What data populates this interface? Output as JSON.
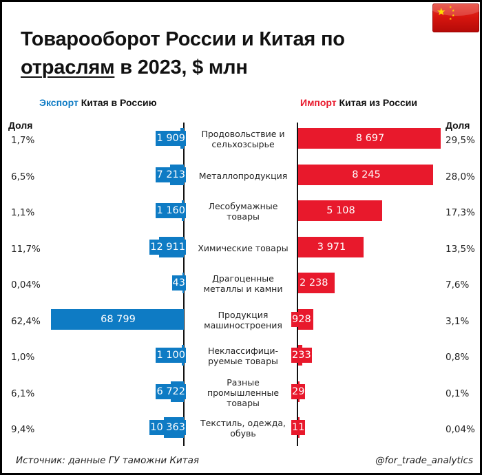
{
  "header": {
    "title_line1": "Товарооборот России и Китая по",
    "title_line2_underlined": "отраслям",
    "title_line2_rest": " в 2023, $ млн",
    "flag": "china-flag"
  },
  "left_panel": {
    "heading_accent": "Экспорт",
    "heading_rest": " Китая в Россию",
    "share_label": "Доля",
    "color": "#0e7bc4"
  },
  "right_panel": {
    "heading_accent": "Импорт",
    "heading_rest": " Китая из России",
    "share_label": "Доля",
    "color": "#e8192c"
  },
  "rows": [
    {
      "category": "Продовольствие и\nсельхозсырье",
      "export": "1 909",
      "export_share": "1,7%",
      "import": "8 697",
      "import_share": "29,5%"
    },
    {
      "category": "Металлопродукция",
      "export": "7 213",
      "export_share": "6,5%",
      "import": "8 245",
      "import_share": "28,0%"
    },
    {
      "category": "Лесобумажные\nтовары",
      "export": "1 160",
      "export_share": "1,1%",
      "import": "5 108",
      "import_share": "17,3%"
    },
    {
      "category": "Химические товары",
      "export": "12 911",
      "export_share": "11,7%",
      "import": "3 971",
      "import_share": "13,5%"
    },
    {
      "category": "Драгоценные\nметаллы и камни",
      "export": "43",
      "export_share": "0,04%",
      "import": "2 238",
      "import_share": "7,6%"
    },
    {
      "category": "Продукция\nмашиностроения",
      "export": "68 799",
      "export_share": "62,4%",
      "import": "928",
      "import_share": "3,1%"
    },
    {
      "category": "Неклассифици-\nруемые товары",
      "export": "1 100",
      "export_share": "1,0%",
      "import": "233",
      "import_share": "0,8%"
    },
    {
      "category": "Разные\nпромышленные\nтовары",
      "export": "6 722",
      "export_share": "6,1%",
      "import": "29",
      "import_share": "0,1%"
    },
    {
      "category": "Текстиль, одежда,\nобувь",
      "export": "10 363",
      "export_share": "9,4%",
      "import": "11",
      "import_share": "0,04%"
    }
  ],
  "footer": {
    "source": "Источник: данные ГУ таможни Китая",
    "handle": "@for_trade_analytics"
  },
  "chart_data": {
    "type": "bar",
    "orientation": "horizontal-butterfly",
    "title": "Товарооборот России и Китая по отраслям в 2023, $ млн",
    "categories": [
      "Продовольствие и сельхозсырье",
      "Металлопродукция",
      "Лесобумажные товары",
      "Химические товары",
      "Драгоценные металлы и камни",
      "Продукция машиностроения",
      "Неклассифицируемые товары",
      "Разные промышленные товары",
      "Текстиль, одежда, обувь"
    ],
    "series": [
      {
        "name": "Экспорт Китая в Россию",
        "color": "#0e7bc4",
        "values": [
          1909,
          7213,
          1160,
          12911,
          43,
          68799,
          1100,
          6722,
          10363
        ],
        "shares": [
          "1,7%",
          "6,5%",
          "1,1%",
          "11,7%",
          "0,04%",
          "62,4%",
          "1,0%",
          "6,1%",
          "9,4%"
        ]
      },
      {
        "name": "Импорт Китая из России",
        "color": "#e8192c",
        "values": [
          8697,
          8245,
          5108,
          3971,
          2238,
          928,
          233,
          29,
          11
        ],
        "shares": [
          "29,5%",
          "28,0%",
          "17,3%",
          "13,5%",
          "7,6%",
          "3,1%",
          "0,8%",
          "0,1%",
          "0,04%"
        ]
      }
    ],
    "xlabel": "",
    "ylabel": "",
    "unit": "$ млн",
    "grid": false,
    "legend": "panel headings above each side",
    "source": "Источник: данные ГУ таможни Китая"
  }
}
